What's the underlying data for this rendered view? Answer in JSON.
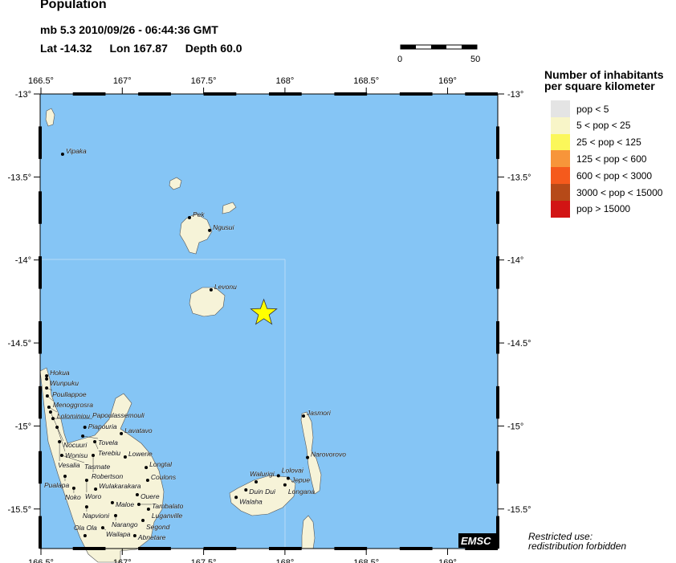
{
  "header": {
    "title": "Population",
    "event": "mb 5.3  2010/09/26 - 06:44:36 GMT",
    "lat": "Lat -14.32",
    "lon": "Lon 167.87",
    "depth": "Depth  60.0"
  },
  "scale_bar": {
    "start": "0",
    "end": "50"
  },
  "map": {
    "lon_ticks": [
      "166.5°",
      "167°",
      "167.5°",
      "168°",
      "168.5°",
      "169°"
    ],
    "lat_ticks": [
      "-13°",
      "-13.5°",
      "-14°",
      "-14.5°",
      "-15°",
      "-15.5°"
    ],
    "ocean_color": "#85c5f5",
    "land_color": "#f6f3d8",
    "epicenter": {
      "lon": 167.87,
      "lat": -14.32,
      "color": "#ffff00",
      "icon": "star-icon"
    },
    "towns": [
      {
        "name": "Vipaka",
        "lon": 166.633,
        "lat": -13.363
      },
      {
        "name": "Pek",
        "lon": 167.413,
        "lat": -13.745
      },
      {
        "name": "Ngusui",
        "lon": 167.537,
        "lat": -13.822
      },
      {
        "name": "Levonu",
        "lon": 167.546,
        "lat": -14.18
      },
      {
        "name": "Jasmori",
        "lon": 168.114,
        "lat": -14.94
      },
      {
        "name": "Narovorovo",
        "lon": 168.139,
        "lat": -15.19
      },
      {
        "name": "Lolovai",
        "lon": 167.96,
        "lat": -15.3
      },
      {
        "name": "Jepue",
        "lon": 168.02,
        "lat": -15.315
      },
      {
        "name": "Longana",
        "lon": 168.0,
        "lat": -15.355
      },
      {
        "name": "Walurigi",
        "lon": 167.823,
        "lat": -15.337
      },
      {
        "name": "Duin Dui",
        "lon": 167.76,
        "lat": -15.385
      },
      {
        "name": "Walaha",
        "lon": 167.7,
        "lat": -15.43
      },
      {
        "name": "Hokua",
        "lon": 166.535,
        "lat": -14.698
      },
      {
        "name": "Wunpuku",
        "lon": 166.535,
        "lat": -14.717
      },
      {
        "name": "Poullappoe",
        "lon": 166.535,
        "lat": -14.771
      },
      {
        "name": "Menoggrosra",
        "lon": 166.539,
        "lat": -14.819
      },
      {
        "name": "Lolominiou",
        "lon": 166.549,
        "lat": -14.887
      },
      {
        "name": "Nocuuri",
        "lon": 166.559,
        "lat": -14.916
      },
      {
        "name": "Papoulassemouli",
        "lon": 166.574,
        "lat": -14.955
      },
      {
        "name": "Wonisu",
        "lon": 166.599,
        "lat": -15.008
      },
      {
        "name": "Piapouria",
        "lon": 166.77,
        "lat": -15.008
      },
      {
        "name": "Lavatavo",
        "lon": 166.994,
        "lat": -15.046
      },
      {
        "name": "Tovela",
        "lon": 166.757,
        "lat": -15.061
      },
      {
        "name": "Terebiu",
        "lon": 166.831,
        "lat": -15.095
      },
      {
        "name": "Vesalia",
        "lon": 166.614,
        "lat": -15.095
      },
      {
        "name": "Tasmate",
        "lon": 166.628,
        "lat": -15.177
      },
      {
        "name": "Robertson",
        "lon": 166.821,
        "lat": -15.177
      },
      {
        "name": "Lowerie",
        "lon": 167.018,
        "lat": -15.187
      },
      {
        "name": "Longtal",
        "lon": 167.147,
        "lat": -15.25
      },
      {
        "name": "Pualapa",
        "lon": 166.648,
        "lat": -15.303
      },
      {
        "name": "Woro",
        "lon": 166.781,
        "lat": -15.327
      },
      {
        "name": "Coulons",
        "lon": 167.156,
        "lat": -15.327
      },
      {
        "name": "Noko",
        "lon": 166.702,
        "lat": -15.375
      },
      {
        "name": "Wulakarakara",
        "lon": 166.836,
        "lat": -15.38
      },
      {
        "name": "Ouere",
        "lon": 167.092,
        "lat": -15.414
      },
      {
        "name": "Maloe",
        "lon": 166.939,
        "lat": -15.462
      },
      {
        "name": "Tambalato",
        "lon": 167.102,
        "lat": -15.472
      },
      {
        "name": "Napvioni",
        "lon": 166.781,
        "lat": -15.487
      },
      {
        "name": "Luganville",
        "lon": 167.161,
        "lat": -15.501
      },
      {
        "name": "Narango",
        "lon": 166.959,
        "lat": -15.54
      },
      {
        "name": "Segond",
        "lon": 167.127,
        "lat": -15.569
      },
      {
        "name": "Wailapa",
        "lon": 166.88,
        "lat": -15.613
      },
      {
        "name": "Ola Ola",
        "lon": 166.771,
        "lat": -15.661
      },
      {
        "name": "Abnetare",
        "lon": 167.077,
        "lat": -15.661
      }
    ],
    "logo": "EMSC"
  },
  "legend": {
    "title_line1": "Number of inhabitants",
    "title_line2": "per square kilometer",
    "items": [
      {
        "label": "pop < 5",
        "color": "#e4e4e4"
      },
      {
        "label": "5 < pop < 25",
        "color": "#f8f5c8"
      },
      {
        "label": "25 < pop < 125",
        "color": "#fbf75a"
      },
      {
        "label": "125 < pop < 600",
        "color": "#f7953a"
      },
      {
        "label": "600 < pop < 3000",
        "color": "#f55a1c"
      },
      {
        "label": "3000 < pop < 15000",
        "color": "#b64a18"
      },
      {
        "label": "pop > 15000",
        "color": "#d21414"
      }
    ]
  },
  "footer": {
    "line1": "Restricted use:",
    "line2": "redistribution forbidden"
  }
}
